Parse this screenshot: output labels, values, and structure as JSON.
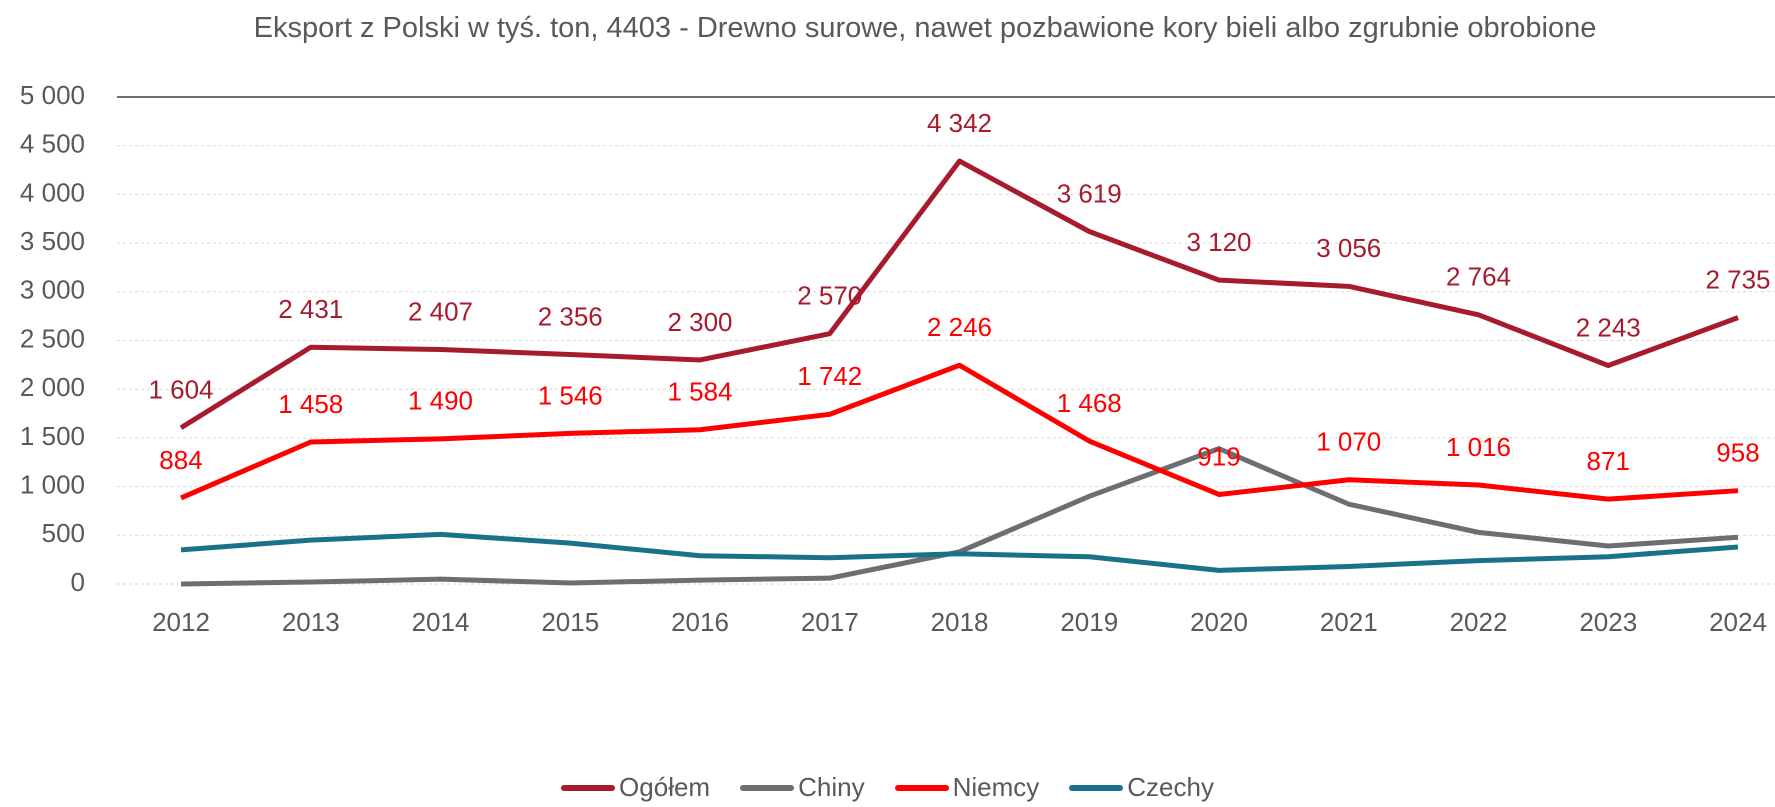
{
  "chart_data": {
    "type": "line",
    "title": "Eksport z Polski w tyś. ton, 4403 - Drewno surowe, nawet pozbawione kory bieli albo zgrubnie obrobione",
    "categories": [
      "2012",
      "2013",
      "2014",
      "2015",
      "2016",
      "2017",
      "2018",
      "2019",
      "2020",
      "2021",
      "2022",
      "2023",
      "2024"
    ],
    "series": [
      {
        "name": "Ogółem",
        "color": "#a61c2e",
        "values": [
          1604,
          2431,
          2407,
          2356,
          2300,
          2570,
          4342,
          3619,
          3120,
          3056,
          2764,
          2243,
          2735
        ],
        "value_labels": [
          "1 604",
          "2 431",
          "2 407",
          "2 356",
          "2 300",
          "2 570",
          "4 342",
          "3 619",
          "3 120",
          "3 056",
          "2 764",
          "2 243",
          "2 735"
        ]
      },
      {
        "name": "Chiny",
        "color": "#6d6e71",
        "values": [
          0,
          20,
          50,
          10,
          40,
          60,
          330,
          900,
          1390,
          820,
          530,
          390,
          480
        ]
      },
      {
        "name": "Niemcy",
        "color": "#ff0000",
        "values": [
          884,
          1458,
          1490,
          1546,
          1584,
          1742,
          2246,
          1468,
          919,
          1070,
          1016,
          871,
          958
        ],
        "value_labels": [
          "884",
          "1 458",
          "1 490",
          "1 546",
          "1 584",
          "1 742",
          "2 246",
          "1 468",
          "919",
          "1 070",
          "1 016",
          "871",
          "958"
        ]
      },
      {
        "name": "Czechy",
        "color": "#1a7189",
        "values": [
          350,
          450,
          510,
          420,
          290,
          270,
          310,
          280,
          140,
          180,
          240,
          280,
          380
        ]
      }
    ],
    "ylim": [
      0,
      5000
    ],
    "yticks": [
      0,
      500,
      {
        "value": 1000,
        "label": "1 000"
      },
      {
        "value": 1500,
        "label": "1 500"
      },
      {
        "value": 2000,
        "label": "2 000"
      },
      {
        "value": 2500,
        "label": "2 500"
      },
      {
        "value": 3000,
        "label": "3 000"
      },
      {
        "value": 3500,
        "label": "3 500"
      },
      {
        "value": 4000,
        "label": "4 000"
      },
      {
        "value": 4500,
        "label": "4 500"
      },
      {
        "value": 5000,
        "label": "5 000"
      }
    ],
    "grid": true,
    "legend": "bottom"
  }
}
